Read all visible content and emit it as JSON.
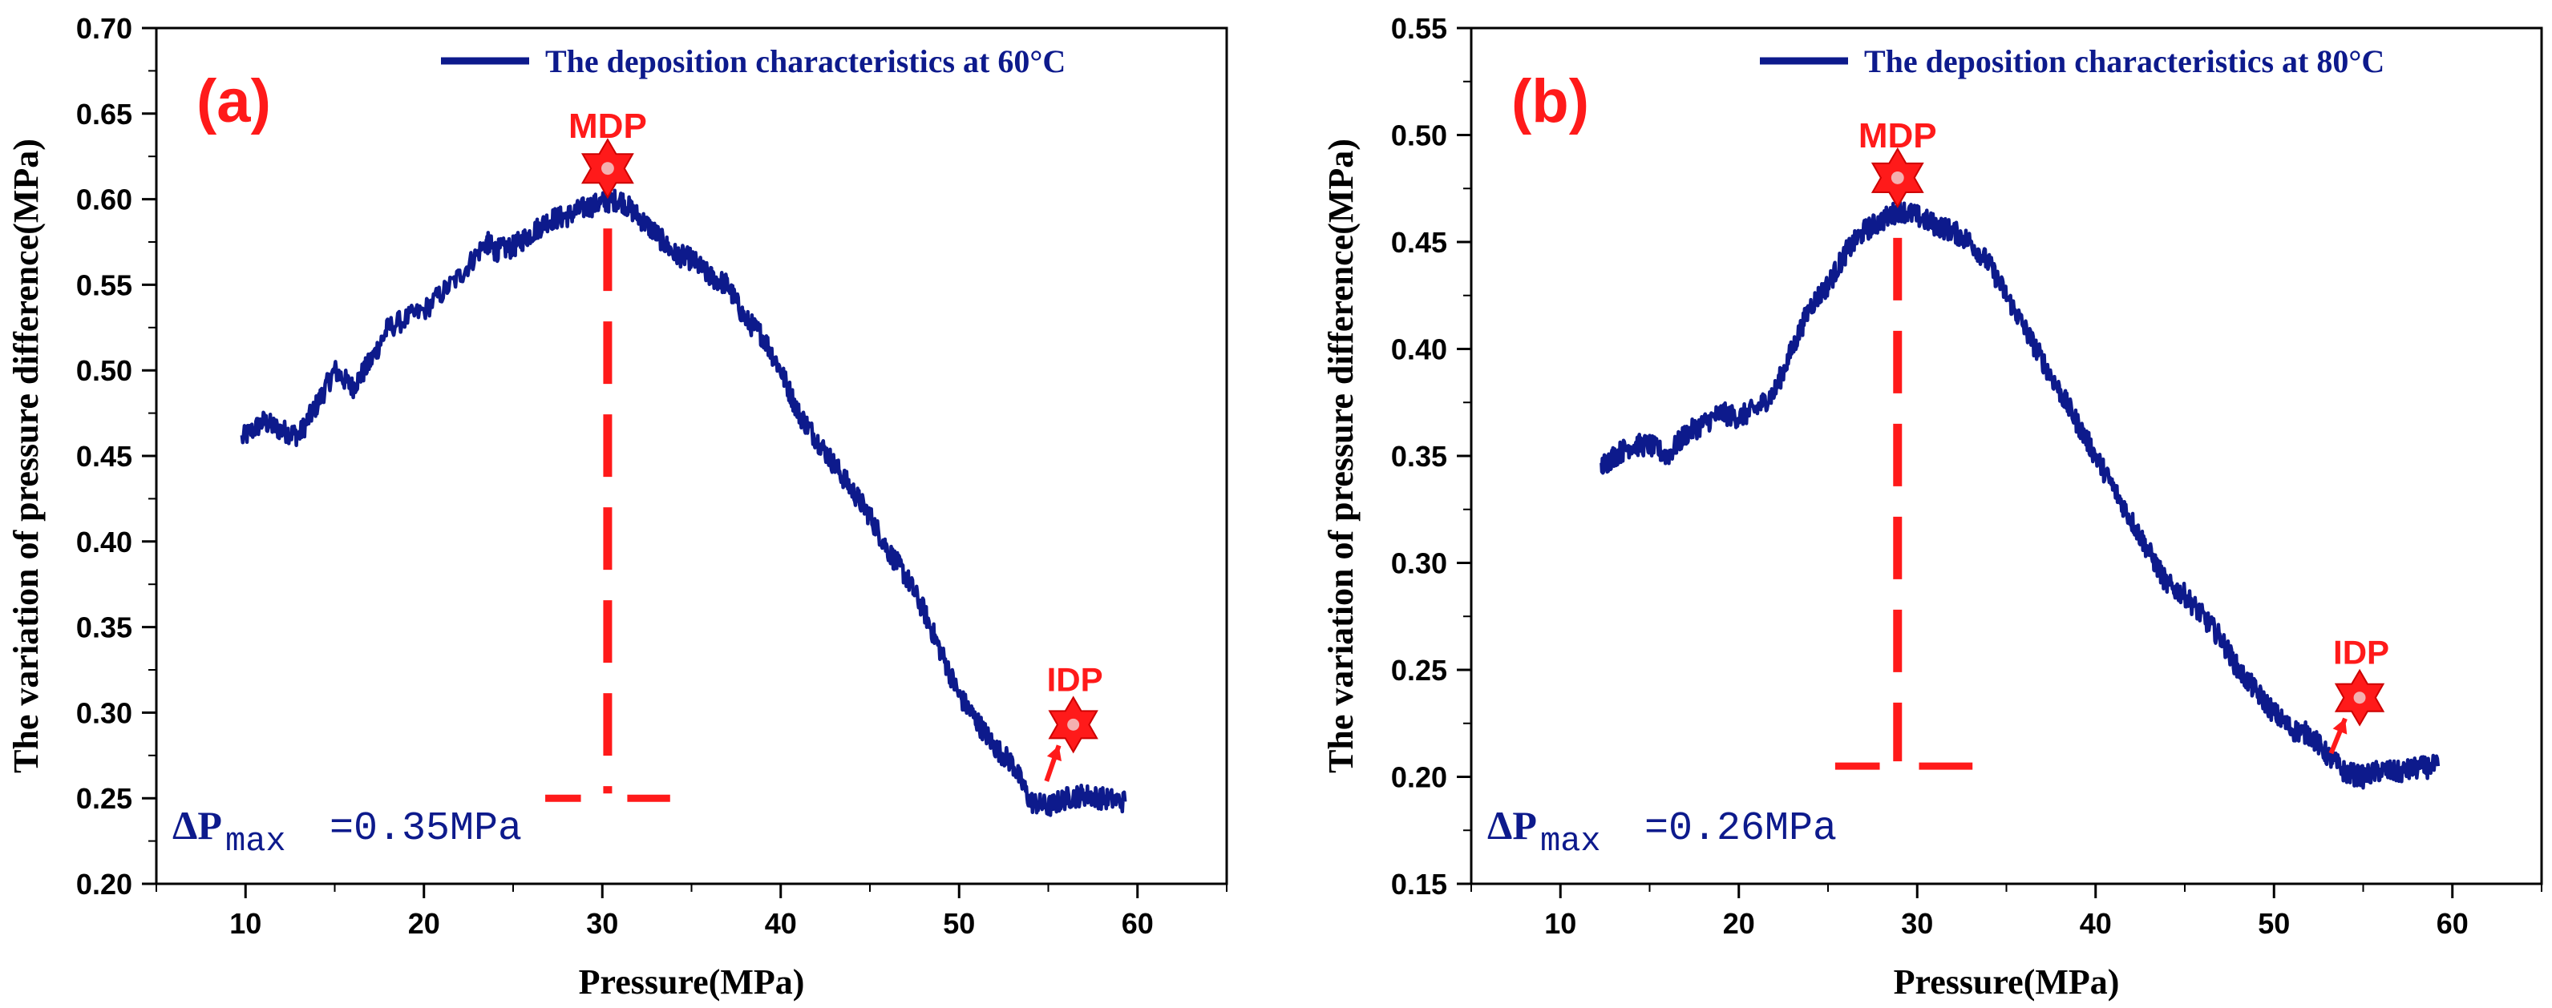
{
  "colors": {
    "series": "#0d1a8c",
    "annotation": "#ff1a1a",
    "axis": "#000000",
    "label_blue": "#0d1a8c"
  },
  "chart_data": [
    {
      "type": "line",
      "panel_label": "(a)",
      "legend": "The deposition characteristics at 60°C",
      "xlabel": "Pressure(MPa)",
      "ylabel": "The variation of pressure difference(MPa)",
      "xlim": [
        5,
        65
      ],
      "ylim": [
        0.2,
        0.7
      ],
      "xticks": [
        "10",
        "20",
        "30",
        "40",
        "50",
        "60"
      ],
      "yticks": [
        "0.20",
        "0.25",
        "0.30",
        "0.35",
        "0.40",
        "0.45",
        "0.50",
        "0.55",
        "0.60",
        "0.65",
        "0.70"
      ],
      "series": [
        {
          "name": "The deposition characteristics at 60°C",
          "x": [
            9.8,
            11,
            12,
            13,
            14,
            15,
            16,
            17,
            18,
            20,
            22,
            23.5,
            24,
            25,
            26,
            27,
            28,
            29,
            30,
            31,
            32,
            33,
            34,
            35,
            36,
            37,
            38,
            39,
            40,
            41,
            42,
            43,
            44,
            45,
            46,
            47,
            48,
            49,
            50,
            51,
            52,
            53,
            54,
            55,
            56,
            57,
            58,
            59.3
          ],
          "values": [
            0.46,
            0.47,
            0.465,
            0.462,
            0.48,
            0.5,
            0.49,
            0.505,
            0.525,
            0.535,
            0.555,
            0.575,
            0.57,
            0.572,
            0.58,
            0.588,
            0.59,
            0.595,
            0.598,
            0.6,
            0.59,
            0.58,
            0.568,
            0.565,
            0.555,
            0.55,
            0.53,
            0.52,
            0.5,
            0.475,
            0.46,
            0.445,
            0.43,
            0.415,
            0.395,
            0.38,
            0.36,
            0.335,
            0.31,
            0.295,
            0.28,
            0.27,
            0.248,
            0.245,
            0.25,
            0.252,
            0.25,
            0.248
          ]
        }
      ],
      "annotations": {
        "mdp_label": "MDP",
        "mdp_x": 30.3,
        "mdp_y": 0.618,
        "mdp_line_bottom": 0.25,
        "mdp_base_segments": [
          [
            26.8,
            28.8
          ],
          [
            31.4,
            33.8
          ]
        ],
        "idp_label": "IDP",
        "idp_x": 56.4,
        "idp_y": 0.293,
        "idp_arrow_from": [
          54.9,
          0.26
        ],
        "delta_prefix": "ΔP",
        "delta_sub": "max",
        "delta_value": "=0.35MPa"
      }
    },
    {
      "type": "line",
      "panel_label": "(b)",
      "legend": "The deposition characteristics at 80°C",
      "xlabel": "Pressure(MPa)",
      "ylabel": "The variation of pressure difference(MPa)",
      "xlim": [
        5,
        65
      ],
      "ylim": [
        0.15,
        0.55
      ],
      "xticks": [
        "10",
        "20",
        "30",
        "40",
        "50",
        "60"
      ],
      "yticks": [
        "0.15",
        "0.20",
        "0.25",
        "0.30",
        "0.35",
        "0.40",
        "0.45",
        "0.50",
        "0.55"
      ],
      "series": [
        {
          "name": "The deposition characteristics at 80°C",
          "x": [
            12.3,
            13,
            14,
            15,
            16,
            17,
            18,
            19,
            20,
            21,
            22,
            23,
            24,
            25,
            26,
            27,
            28,
            29,
            30,
            31,
            32,
            33,
            34,
            35,
            36,
            37,
            38,
            39,
            40,
            41,
            42,
            43,
            44,
            45,
            46,
            47,
            48,
            49,
            50,
            51,
            52,
            53,
            54,
            55,
            56,
            57,
            58,
            59.2
          ],
          "values": [
            0.345,
            0.35,
            0.355,
            0.355,
            0.35,
            0.36,
            0.365,
            0.37,
            0.368,
            0.372,
            0.38,
            0.4,
            0.42,
            0.43,
            0.445,
            0.455,
            0.46,
            0.465,
            0.462,
            0.458,
            0.455,
            0.45,
            0.44,
            0.425,
            0.41,
            0.395,
            0.38,
            0.365,
            0.35,
            0.335,
            0.32,
            0.305,
            0.29,
            0.285,
            0.275,
            0.265,
            0.25,
            0.24,
            0.23,
            0.222,
            0.22,
            0.21,
            0.202,
            0.2,
            0.203,
            0.202,
            0.204,
            0.205
          ]
        }
      ],
      "annotations": {
        "mdp_label": "MDP",
        "mdp_x": 28.9,
        "mdp_y": 0.48,
        "mdp_line_bottom": 0.205,
        "mdp_base_segments": [
          [
            25.4,
            27.9
          ],
          [
            30.1,
            33.1
          ]
        ],
        "idp_label": "IDP",
        "idp_x": 54.8,
        "idp_y": 0.237,
        "idp_arrow_from": [
          53.2,
          0.211
        ],
        "delta_prefix": "ΔP",
        "delta_sub": "max",
        "delta_value": "=0.26MPa"
      }
    }
  ]
}
